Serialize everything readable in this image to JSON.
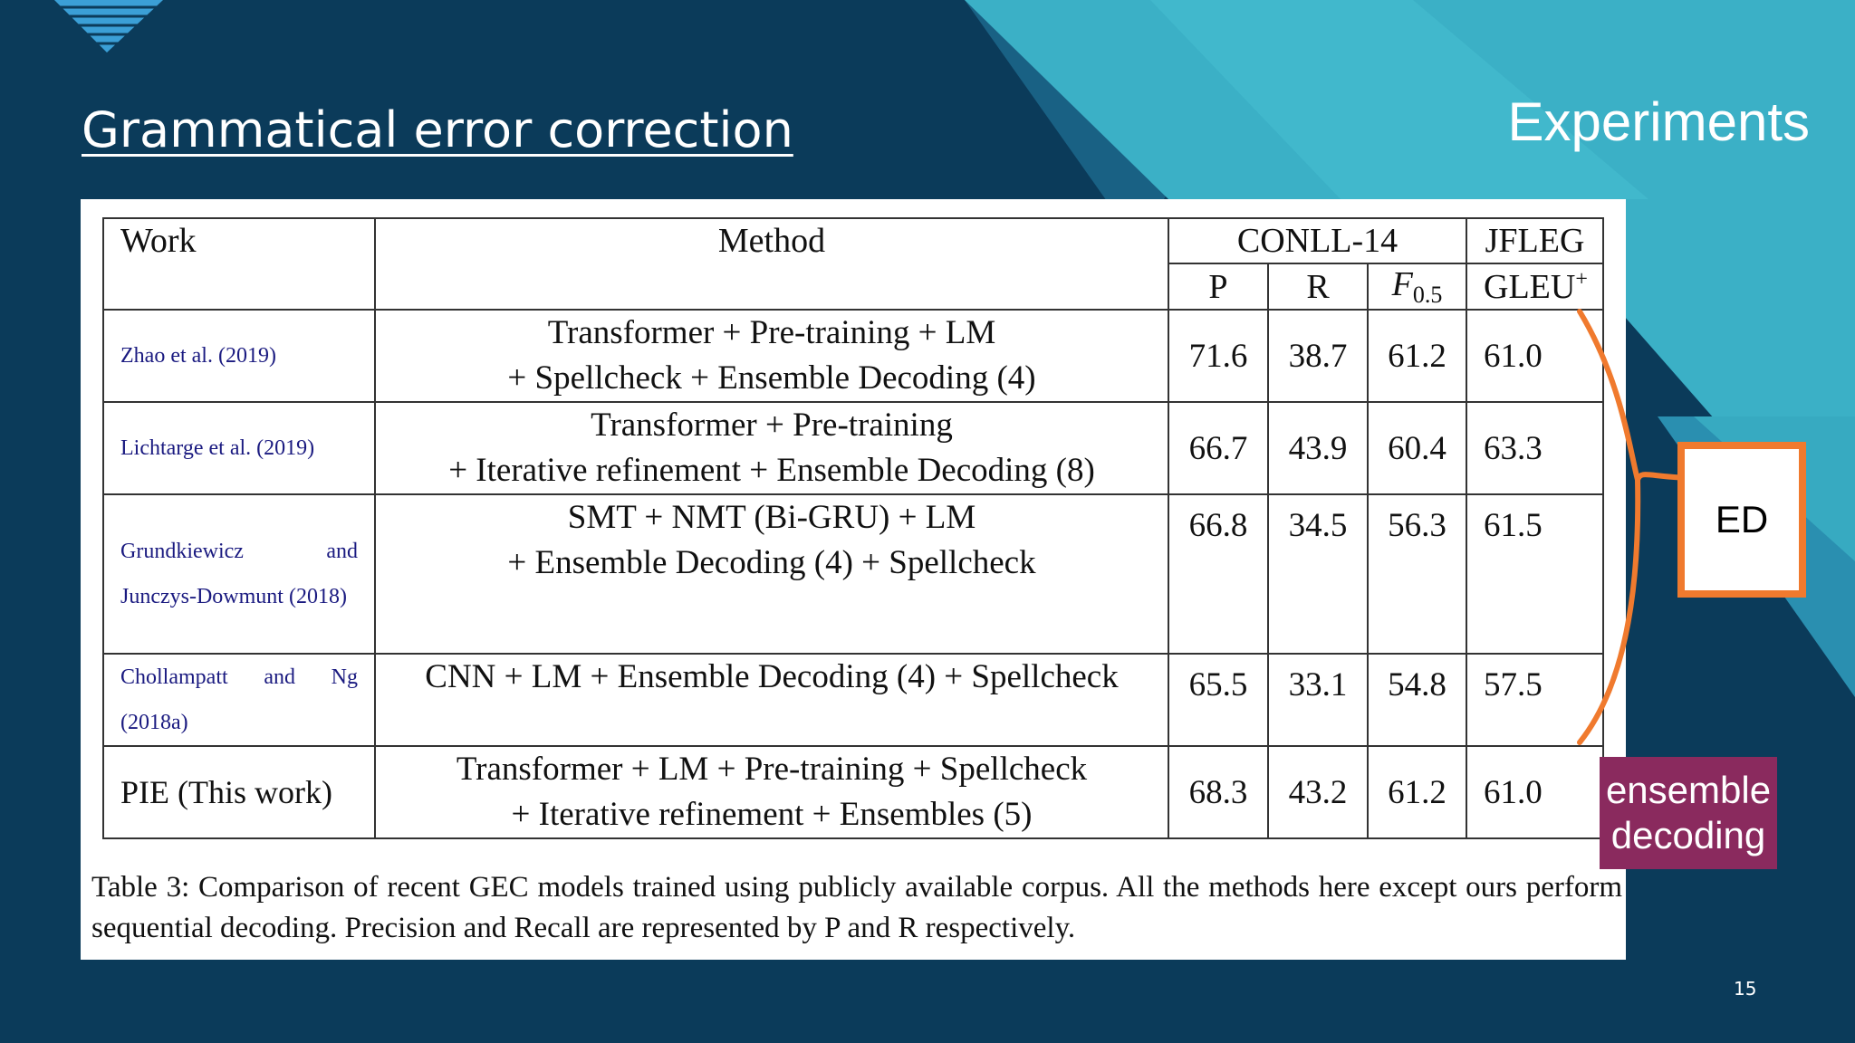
{
  "slide": {
    "title": "Grammatical error correction",
    "section": "Experiments",
    "page_number": "15"
  },
  "table": {
    "headers": {
      "work": "Work",
      "method": "Method",
      "conll": "CONLL-14",
      "jfleg": "JFLEG",
      "p": "P",
      "r": "R",
      "f_letter": "F",
      "f_sub": "0.5",
      "gleu": "GLEU",
      "gleu_sup": "+"
    },
    "rows": [
      {
        "work": "Zhao et al. (2019)",
        "method_line1": "Transformer + Pre-training + LM",
        "method_line2": "+ Spellcheck + Ensemble Decoding (4)",
        "p": "71.6",
        "r": "38.7",
        "f": "61.2",
        "gleu": "61.0"
      },
      {
        "work": "Lichtarge et al. (2019)",
        "method_line1": "Transformer + Pre-training",
        "method_line2": "+ Iterative refinement + Ensemble Decoding (8)",
        "p": "66.7",
        "r": "43.9",
        "f": "60.4",
        "gleu": "63.3"
      },
      {
        "work": "Grundkiewicz and Junczys-Dowmunt (2018)",
        "method_line1": "SMT + NMT (Bi-GRU) + LM",
        "method_line2": "+ Ensemble Decoding (4) + Spellcheck",
        "p": "66.8",
        "r": "34.5",
        "f": "56.3",
        "gleu": "61.5"
      },
      {
        "work": "Chollampatt and Ng (2018a)",
        "method_line1": "CNN + LM + Ensemble Decoding (4) + Spellcheck",
        "p": "65.5",
        "r": "33.1",
        "f": "54.8",
        "gleu": "57.5"
      },
      {
        "work": "PIE (This work)",
        "method_line1": "Transformer + LM + Pre-training + Spellcheck",
        "method_line2": "+ Iterative refinement + Ensembles (5)",
        "p": "68.3",
        "r": "43.2",
        "f": "61.2",
        "gleu": "61.0"
      }
    ],
    "caption": "Table 3: Comparison of recent GEC models trained using publicly available corpus. All the methods here except ours perform sequential decoding. Precision and Recall are represented by P and R respectively."
  },
  "annotations": {
    "ed_label": "ED",
    "ensemble_label": "ensemble\ndecoding",
    "bracket_color": "#f07a2e",
    "ensemble_color": "#8a2a5e"
  },
  "colors": {
    "background": "#0b3b5a",
    "accent_light": "#3fb3c8",
    "accent_mid": "#1f8fb0"
  }
}
